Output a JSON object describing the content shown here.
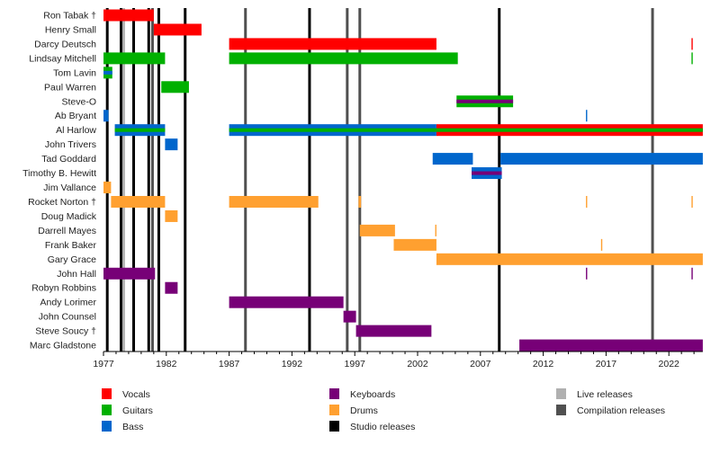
{
  "chart_data": {
    "type": "timeline",
    "xlim": [
      1977,
      2024.7
    ],
    "x_ticks": [
      "1977",
      "1982",
      "1987",
      "1992",
      "1997",
      "2002",
      "2007",
      "2012",
      "2017",
      "2022"
    ],
    "grid": false,
    "legend_placement": "bottom",
    "colors": {
      "Vocals": "#ff0000",
      "Guitars": "#00b000",
      "Bass": "#0066cc",
      "Keyboards": "#770077",
      "Drums": "#ffa030",
      "Studio releases": "#000000",
      "Live releases": "#b0b0b0",
      "Compilation releases": "#505050"
    },
    "legend": [
      {
        "label": "Vocals",
        "role": "Vocals"
      },
      {
        "label": "Guitars",
        "role": "Guitars"
      },
      {
        "label": "Bass",
        "role": "Bass"
      },
      {
        "label": "Keyboards",
        "role": "Keyboards"
      },
      {
        "label": "Drums",
        "role": "Drums"
      },
      {
        "label": "Studio releases",
        "role": "Studio releases"
      },
      {
        "label": "Live releases",
        "role": "Live releases"
      },
      {
        "label": "Compilation releases",
        "role": "Compilation releases"
      }
    ],
    "releases": [
      {
        "year": 1977.3,
        "type": "Studio releases"
      },
      {
        "year": 1978.4,
        "type": "Studio releases"
      },
      {
        "year": 1978.6,
        "type": "Live releases"
      },
      {
        "year": 1979.4,
        "type": "Studio releases"
      },
      {
        "year": 1980.6,
        "type": "Studio releases"
      },
      {
        "year": 1980.9,
        "type": "Compilation releases"
      },
      {
        "year": 1981.4,
        "type": "Studio releases"
      },
      {
        "year": 1983.5,
        "type": "Studio releases"
      },
      {
        "year": 1988.3,
        "type": "Compilation releases"
      },
      {
        "year": 1993.4,
        "type": "Studio releases"
      },
      {
        "year": 1996.4,
        "type": "Compilation releases"
      },
      {
        "year": 1997.4,
        "type": "Compilation releases"
      },
      {
        "year": 2008.5,
        "type": "Studio releases"
      },
      {
        "year": 2020.7,
        "type": "Compilation releases"
      }
    ],
    "members": [
      {
        "name": "Ron Tabak †",
        "periods": [
          {
            "start": 1977,
            "end": 1981.0,
            "roles": [
              "Vocals"
            ]
          }
        ]
      },
      {
        "name": "Henry Small",
        "periods": [
          {
            "start": 1981.0,
            "end": 1984.8,
            "roles": [
              "Vocals"
            ]
          }
        ]
      },
      {
        "name": "Darcy Deutsch",
        "periods": [
          {
            "start": 1987,
            "end": 2003.5,
            "roles": [
              "Vocals"
            ]
          },
          {
            "start": 2023.8,
            "end": 2023.9,
            "roles": [
              "Vocals"
            ]
          }
        ]
      },
      {
        "name": "Lindsay Mitchell",
        "periods": [
          {
            "start": 1977,
            "end": 1981.9,
            "roles": [
              "Guitars"
            ]
          },
          {
            "start": 1987,
            "end": 2005.2,
            "roles": [
              "Guitars"
            ]
          },
          {
            "start": 2023.8,
            "end": 2023.9,
            "roles": [
              "Guitars"
            ]
          }
        ]
      },
      {
        "name": "Tom Lavin",
        "periods": [
          {
            "start": 1977,
            "end": 1977.7,
            "roles": [
              "Guitars",
              "Bass"
            ]
          }
        ]
      },
      {
        "name": "Paul Warren",
        "periods": [
          {
            "start": 1981.6,
            "end": 1983.8,
            "roles": [
              "Guitars"
            ]
          }
        ]
      },
      {
        "name": "Steve-O",
        "periods": [
          {
            "start": 2005.1,
            "end": 2009.6,
            "roles": [
              "Guitars",
              "Keyboards"
            ]
          }
        ]
      },
      {
        "name": "Ab Bryant",
        "periods": [
          {
            "start": 1977,
            "end": 1977.4,
            "roles": [
              "Bass"
            ]
          },
          {
            "start": 2015.4,
            "end": 2015.5,
            "roles": [
              "Bass"
            ]
          }
        ]
      },
      {
        "name": "Al Harlow",
        "periods": [
          {
            "start": 1977.9,
            "end": 1981.9,
            "roles": [
              "Bass",
              "Guitars"
            ]
          },
          {
            "start": 1987,
            "end": 2003.5,
            "roles": [
              "Bass",
              "Guitars"
            ]
          },
          {
            "start": 2003.5,
            "end": 2024.7,
            "roles": [
              "Vocals",
              "Guitars"
            ]
          }
        ]
      },
      {
        "name": "John Trivers",
        "periods": [
          {
            "start": 1981.9,
            "end": 1982.9,
            "roles": [
              "Bass"
            ]
          }
        ]
      },
      {
        "name": "Tad Goddard",
        "periods": [
          {
            "start": 2003.2,
            "end": 2006.4,
            "roles": [
              "Bass"
            ]
          },
          {
            "start": 2008.6,
            "end": 2024.7,
            "roles": [
              "Bass"
            ]
          }
        ]
      },
      {
        "name": "Timothy B. Hewitt",
        "periods": [
          {
            "start": 2006.3,
            "end": 2008.7,
            "roles": [
              "Bass",
              "Keyboards"
            ]
          }
        ]
      },
      {
        "name": "Jim Vallance",
        "periods": [
          {
            "start": 1977,
            "end": 1977.6,
            "roles": [
              "Drums"
            ]
          }
        ]
      },
      {
        "name": "Rocket Norton †",
        "periods": [
          {
            "start": 1977.6,
            "end": 1981.9,
            "roles": [
              "Drums"
            ]
          },
          {
            "start": 1987,
            "end": 1994.1,
            "roles": [
              "Drums"
            ]
          },
          {
            "start": 1997.3,
            "end": 1997.5,
            "roles": [
              "Drums"
            ]
          },
          {
            "start": 2015.4,
            "end": 2015.5,
            "roles": [
              "Drums"
            ]
          },
          {
            "start": 2023.8,
            "end": 2023.9,
            "roles": [
              "Drums"
            ]
          }
        ]
      },
      {
        "name": "Doug Madick",
        "periods": [
          {
            "start": 1981.9,
            "end": 1982.9,
            "roles": [
              "Drums"
            ]
          }
        ]
      },
      {
        "name": "Darrell Mayes",
        "periods": [
          {
            "start": 1997.4,
            "end": 2000.2,
            "roles": [
              "Drums"
            ]
          },
          {
            "start": 2003.4,
            "end": 2003.5,
            "roles": [
              "Drums"
            ]
          }
        ]
      },
      {
        "name": "Frank Baker",
        "periods": [
          {
            "start": 2000.1,
            "end": 2003.5,
            "roles": [
              "Drums"
            ]
          },
          {
            "start": 2016.6,
            "end": 2016.7,
            "roles": [
              "Drums"
            ]
          }
        ]
      },
      {
        "name": "Gary Grace",
        "periods": [
          {
            "start": 2003.5,
            "end": 2024.7,
            "roles": [
              "Drums"
            ]
          }
        ]
      },
      {
        "name": "John Hall",
        "periods": [
          {
            "start": 1977,
            "end": 1981.1,
            "roles": [
              "Keyboards"
            ]
          },
          {
            "start": 2015.4,
            "end": 2015.5,
            "roles": [
              "Keyboards"
            ]
          },
          {
            "start": 2023.8,
            "end": 2023.9,
            "roles": [
              "Keyboards"
            ]
          }
        ]
      },
      {
        "name": "Robyn Robbins",
        "periods": [
          {
            "start": 1981.9,
            "end": 1982.9,
            "roles": [
              "Keyboards"
            ]
          }
        ]
      },
      {
        "name": "Andy Lorimer",
        "periods": [
          {
            "start": 1987,
            "end": 1996.1,
            "roles": [
              "Keyboards"
            ]
          }
        ]
      },
      {
        "name": "John Counsel",
        "periods": [
          {
            "start": 1996.1,
            "end": 1997.1,
            "roles": [
              "Keyboards"
            ]
          }
        ]
      },
      {
        "name": "Steve Soucy †",
        "periods": [
          {
            "start": 1997.1,
            "end": 2003.1,
            "roles": [
              "Keyboards"
            ]
          }
        ]
      },
      {
        "name": "Marc Gladstone",
        "periods": [
          {
            "start": 2010.1,
            "end": 2024.7,
            "roles": [
              "Keyboards"
            ]
          }
        ]
      }
    ]
  }
}
